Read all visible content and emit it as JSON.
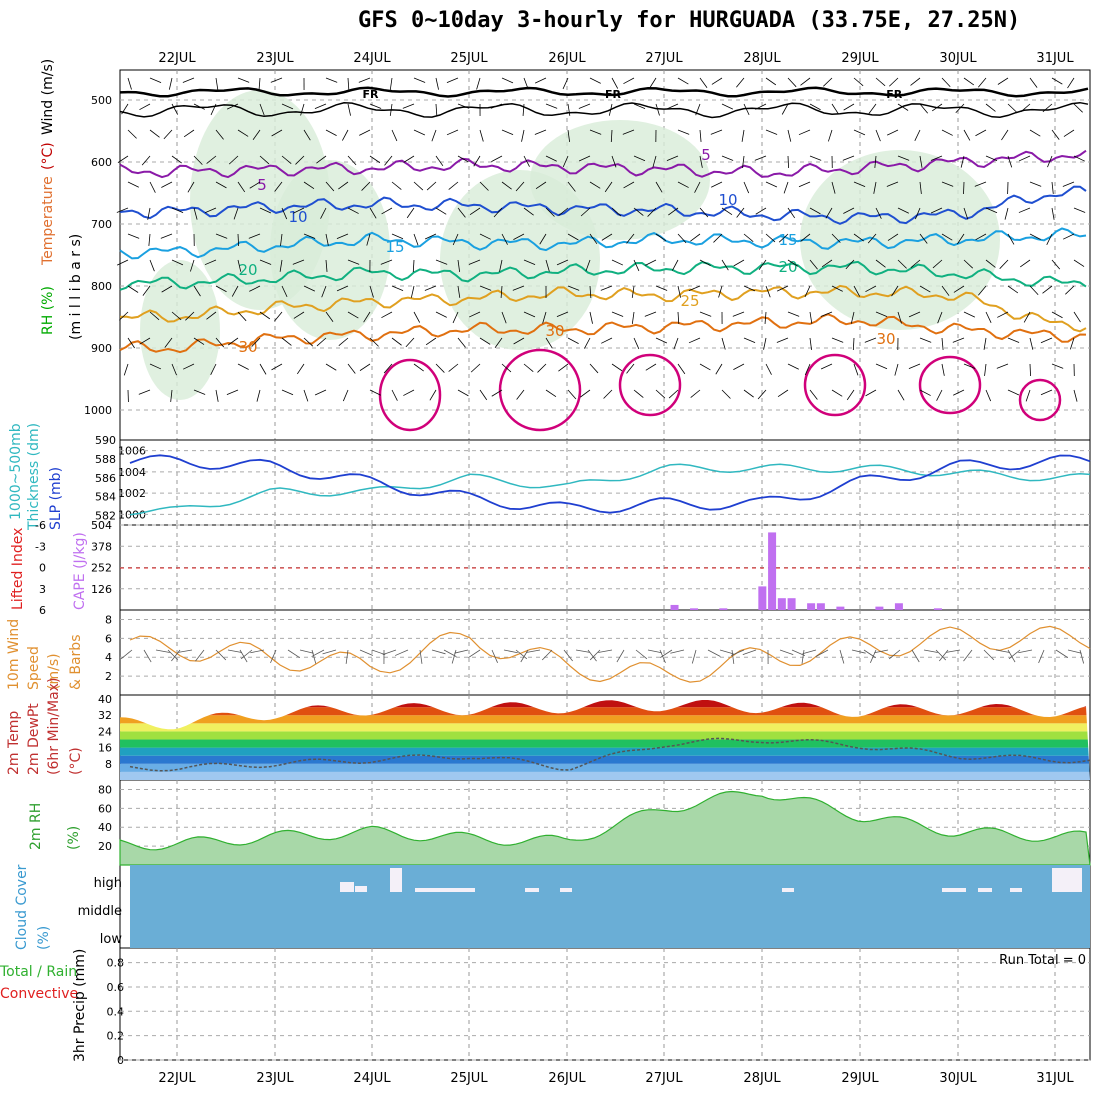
{
  "title": "GFS 0~10day 3-hourly for HURGUADA (33.75E, 27.25N)",
  "dates": [
    "22JUL",
    "23JUL",
    "24JUL",
    "25JUL",
    "26JUL",
    "27JUL",
    "28JUL",
    "29JUL",
    "30JUL",
    "31JUL"
  ],
  "colors": {
    "temp5": "#8a1aa8",
    "temp10": "#1f4fd0",
    "temp15": "#1aa0e0",
    "temp20": "#10b080",
    "temp25": "#e0a020",
    "temp30": "#e07010",
    "hot": "#d0007a",
    "fr": "#000000",
    "rhShade": "#d8ecd8",
    "slp": "#1f3fd0",
    "thick": "#30b8c0",
    "cape": "#c070f0",
    "li": "#e02020",
    "wind": "#e09030",
    "rh2m": "#30b030",
    "cloud": "#6aaed6"
  },
  "panels": {
    "upper": {
      "ylabel_parts": [
        "RH (%)",
        "Temperature",
        "(°C)",
        "Wind (m/s)",
        "(m i l l i b a r s)"
      ],
      "yticks": [
        "500",
        "600",
        "700",
        "800",
        "900",
        "1000"
      ],
      "labels": [
        {
          "t": "FR",
          "x": 0.25
        },
        {
          "t": "FR",
          "x": 0.5
        },
        {
          "t": "FR",
          "x": 0.79
        },
        {
          "t": "5",
          "x": 0.14
        },
        {
          "t": "10",
          "x": 0.18
        },
        {
          "t": "15",
          "x": 0.29
        },
        {
          "t": "20",
          "x": 0.13
        },
        {
          "t": "30",
          "x": 0.13
        },
        {
          "t": "5",
          "x": 0.6
        },
        {
          "t": "10",
          "x": 0.63
        },
        {
          "t": "15",
          "x": 0.69
        },
        {
          "t": "20",
          "x": 0.69
        },
        {
          "t": "25",
          "x": 0.59
        },
        {
          "t": "30",
          "x": 0.45
        },
        {
          "t": "30",
          "x": 0.79
        }
      ]
    },
    "slp": {
      "ylabel_left": "1000~500mb",
      "ylabel_left2": "Thickness (dm)",
      "ylabel_right": "SLP (mb)",
      "yticks_left": [
        "590",
        "588",
        "586",
        "584",
        "582"
      ],
      "yticks_right": [
        "1006",
        "1004",
        "1002",
        "1000"
      ]
    },
    "cape": {
      "ylabel_left": "Lifted Index",
      "ylabel_right": "CAPE (J/kg)",
      "yticks_left": [
        "-6",
        "-3",
        "0",
        "3",
        "6"
      ],
      "yticks_right": [
        "504",
        "378",
        "252",
        "126"
      ]
    },
    "wind10": {
      "ylabel": [
        "10m Wind",
        "Speed",
        "(m/s)",
        "& Barbs"
      ],
      "yticks": [
        "8",
        "6",
        "4",
        "2"
      ]
    },
    "temp2m": {
      "ylabel": [
        "2m Temp",
        "2m DewPt",
        "(6hr Min/Max)",
        "(°C)"
      ],
      "yticks": [
        "40",
        "32",
        "24",
        "16",
        "8"
      ]
    },
    "rh2m": {
      "ylabel": [
        "2m RH",
        "(%)"
      ],
      "yticks": [
        "80",
        "60",
        "40",
        "20"
      ]
    },
    "cloud": {
      "ylabel": [
        "Cloud Cover",
        "(%)"
      ],
      "yticks": [
        "high",
        "middle",
        "low"
      ]
    },
    "precip": {
      "ylabel": [
        "Total / Rain",
        "Convective",
        "3hr Precip (mm)"
      ],
      "yticks": [
        "0.8",
        "0.6",
        "0.4",
        "0.2",
        "0"
      ],
      "run_total": "Run Total = 0"
    }
  },
  "chart_data": [
    {
      "type": "line",
      "name": "upper-air isotherms",
      "xlabel": "",
      "ylabel": "millibars",
      "x": [
        "22JUL",
        "23JUL",
        "24JUL",
        "25JUL",
        "26JUL",
        "27JUL",
        "28JUL",
        "29JUL",
        "30JUL",
        "31JUL"
      ],
      "series": [
        {
          "name": "5",
          "values": [
            615,
            612,
            610,
            605,
            608,
            612,
            618,
            610,
            600,
            590
          ]
        },
        {
          "name": "10",
          "values": [
            680,
            672,
            668,
            670,
            675,
            678,
            685,
            690,
            685,
            650
          ]
        },
        {
          "name": "15",
          "values": [
            745,
            735,
            725,
            730,
            732,
            725,
            728,
            730,
            725,
            718
          ]
        },
        {
          "name": "20",
          "values": [
            795,
            788,
            778,
            782,
            776,
            772,
            770,
            770,
            780,
            795
          ]
        },
        {
          "name": "25",
          "values": [
            850,
            835,
            825,
            820,
            812,
            815,
            810,
            810,
            815,
            862
          ]
        },
        {
          "name": "30",
          "values": [
            900,
            885,
            878,
            870,
            870,
            865,
            860,
            855,
            870,
            880
          ]
        }
      ],
      "ylim": [
        1000,
        500
      ]
    },
    {
      "type": "line",
      "x": [
        "22JUL",
        "23JUL",
        "24JUL",
        "25JUL",
        "26JUL",
        "27JUL",
        "28JUL",
        "29JUL",
        "30JUL",
        "31JUL"
      ],
      "series": [
        {
          "name": "Thickness",
          "values": [
            582.5,
            584.5,
            584.5,
            586,
            585,
            587,
            587,
            587,
            586.5,
            586
          ]
        },
        {
          "name": "SLP",
          "values": [
            1005,
            1004.5,
            1003,
            1001.5,
            1000.5,
            1001,
            1001,
            1003,
            1004.5,
            1005
          ]
        }
      ],
      "ylim": [
        581,
        590
      ],
      "ylim_right": [
        999,
        1007
      ]
    },
    {
      "type": "bar",
      "categories": [
        "27.1",
        "27.3",
        "27.6",
        "28.0",
        "28.1",
        "28.2",
        "28.3",
        "28.5",
        "28.6",
        "28.8",
        "29.2",
        "29.4",
        "29.8"
      ],
      "values": [
        30,
        10,
        10,
        140,
        460,
        70,
        70,
        40,
        40,
        20,
        20,
        40,
        10
      ],
      "ylim": [
        0,
        504
      ]
    },
    {
      "type": "line",
      "x": [
        "22JUL",
        "23JUL",
        "24JUL",
        "25JUL",
        "26JUL",
        "27JUL",
        "28JUL",
        "29JUL",
        "30JUL",
        "31JUL"
      ],
      "series": [
        {
          "name": "Speed",
          "values": [
            5,
            4,
            3,
            6,
            3,
            2,
            4,
            5,
            6,
            6
          ]
        }
      ],
      "ylim": [
        0,
        9
      ]
    },
    {
      "type": "area",
      "x": [
        "22JUL",
        "23JUL",
        "24JUL",
        "25JUL",
        "26JUL",
        "27JUL",
        "28JUL",
        "29JUL",
        "30JUL",
        "31JUL"
      ],
      "series": [
        {
          "name": "Temp",
          "values": [
            28,
            33,
            35,
            35,
            36,
            37,
            36,
            34,
            35,
            34
          ]
        },
        {
          "name": "DewPt",
          "values": [
            6,
            8,
            10,
            12,
            6,
            18,
            20,
            17,
            12,
            10
          ]
        }
      ],
      "ylim": [
        0,
        40
      ]
    },
    {
      "type": "area",
      "x": [
        "22JUL",
        "23JUL",
        "24JUL",
        "25JUL",
        "26JUL",
        "27JUL",
        "28JUL",
        "29JUL",
        "30JUL",
        "31JUL"
      ],
      "series": [
        {
          "name": "RH",
          "values": [
            22,
            30,
            35,
            28,
            25,
            60,
            78,
            52,
            35,
            30
          ]
        }
      ],
      "ylim": [
        0,
        90
      ]
    }
  ]
}
